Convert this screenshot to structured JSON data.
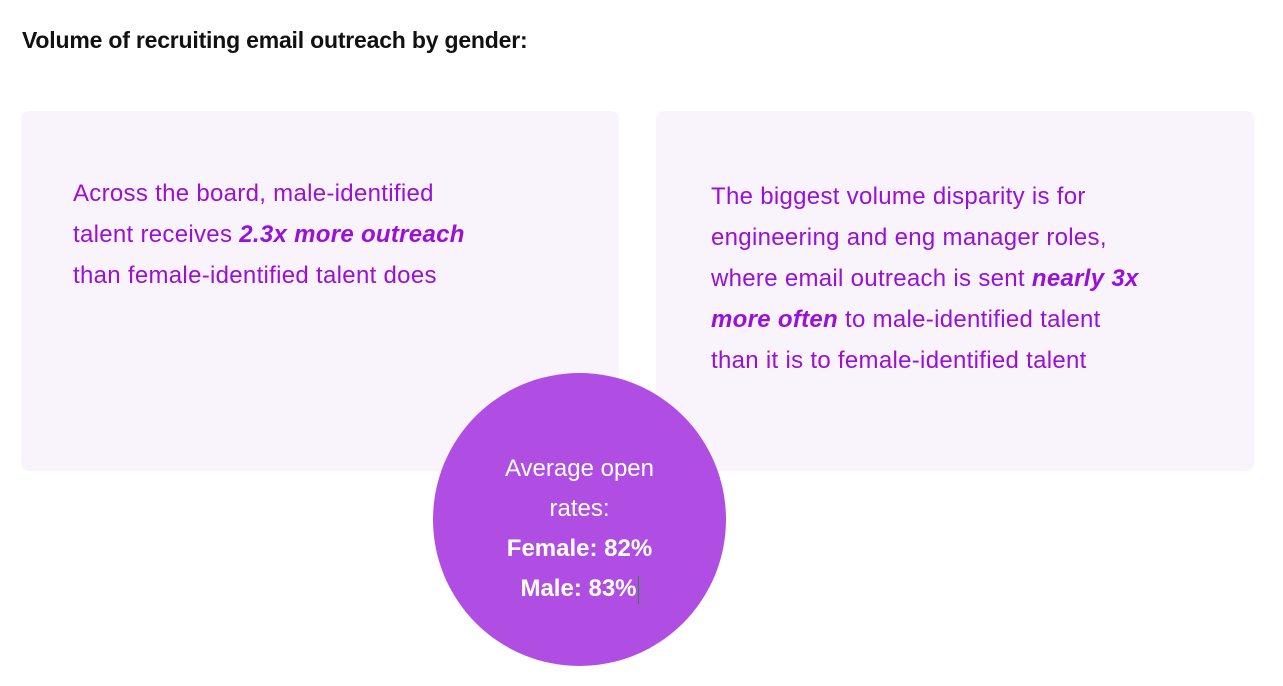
{
  "heading": "Volume of recruiting email outreach by gender:",
  "cards": [
    {
      "lines": [
        {
          "text": "Across the board, male-identified"
        },
        {
          "text": "talent receives ",
          "emphasis": "2.3x more outreach"
        },
        {
          "text": "than female-identified talent does"
        }
      ]
    },
    {
      "lines": [
        {
          "text": "The biggest volume disparity is for"
        },
        {
          "text": "engineering and eng manager roles,"
        },
        {
          "text": "where email outreach is sent ",
          "emphasis": "nearly 3x"
        },
        {
          "emphasis": "more often",
          "text_after": " to male-identified talent"
        },
        {
          "text": "than it is to female-identified talent"
        }
      ]
    }
  ],
  "open_rates": {
    "label_line1": "Average open",
    "label_line2": "rates:",
    "female": "Female: 82%",
    "male": "Male: 83%"
  },
  "colors": {
    "accent_text": "#9b0fd6",
    "card_bg": "#f9f3fb",
    "circle_bg": "#b04ee4"
  }
}
